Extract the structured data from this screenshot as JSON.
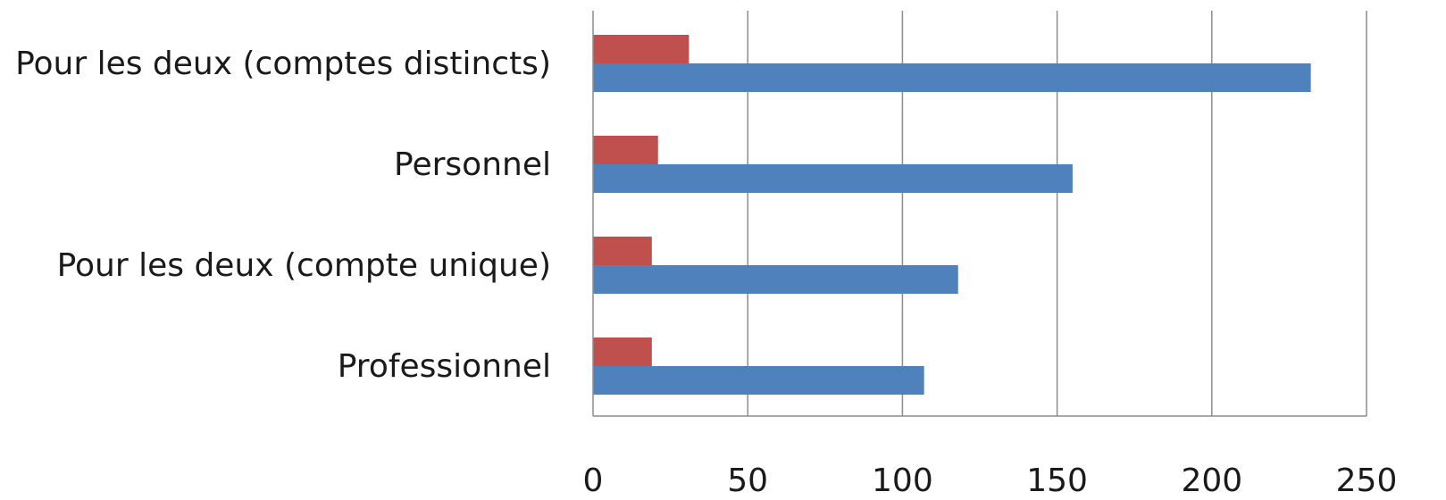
{
  "chart_data": {
    "type": "bar",
    "orientation": "horizontal",
    "categories": [
      "Pour les deux (comptes distincts)",
      "Personnel",
      "Pour les deux (compte unique)",
      "Professionnel"
    ],
    "series": [
      {
        "color": "#c0504d",
        "values": [
          31,
          21,
          19,
          19
        ]
      },
      {
        "color": "#4f81bd",
        "values": [
          232,
          155,
          118,
          107
        ]
      }
    ],
    "title": "",
    "xlabel": "",
    "ylabel": "",
    "xlim": [
      0,
      250
    ],
    "x_ticks": [
      0,
      50,
      100,
      150,
      200,
      250
    ],
    "x_tick_labels": [
      "0",
      "50",
      "100",
      "150",
      "200",
      "250"
    ],
    "grid": "vertical",
    "legend": "none"
  }
}
